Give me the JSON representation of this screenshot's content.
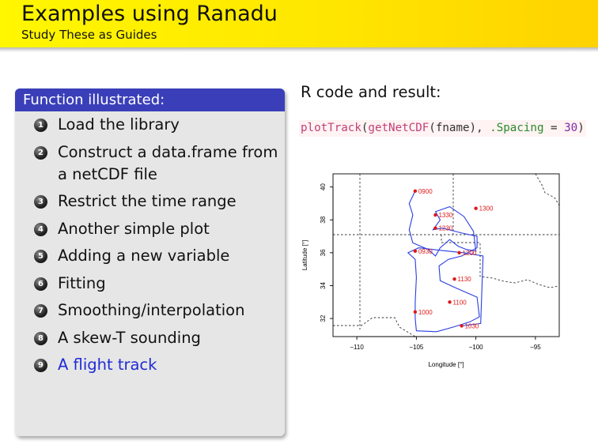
{
  "header": {
    "title": "Examples using Ranadu",
    "subtitle": "Study These as Guides",
    "colors": {
      "background": "#ffe600",
      "text": "#111111"
    }
  },
  "block": {
    "title": "Function illustrated:",
    "items": [
      {
        "number": "1",
        "label": "Load the library"
      },
      {
        "number": "2",
        "label": "Construct a data.frame from a netCDF file"
      },
      {
        "number": "3",
        "label": "Restrict the time range"
      },
      {
        "number": "4",
        "label": "Another simple plot"
      },
      {
        "number": "5",
        "label": "Adding a new variable"
      },
      {
        "number": "6",
        "label": "Fitting"
      },
      {
        "number": "7",
        "label": "Smoothing/interpolation"
      },
      {
        "number": "8",
        "label": "A skew-T sounding"
      },
      {
        "number": "9",
        "label": "A flight track"
      }
    ],
    "active_item": 8,
    "colors": {
      "title_bar": "#3a3fb9",
      "active": "#1f2bd6"
    }
  },
  "right": {
    "heading": "R code and result:",
    "code": {
      "fn1": "plotTrack",
      "p1": "(",
      "fn2": "getNetCDF",
      "p2": "(fname), ",
      "arg": ".Spacing",
      "p3": " = ",
      "num": "30",
      "p4": ")"
    }
  },
  "chart_data": {
    "type": "line",
    "title": "",
    "xlabel": "Longitude [°]",
    "ylabel": "Latitude [°]",
    "xlim": [
      -112.0,
      -93.0
    ],
    "ylim": [
      30.9,
      40.8
    ],
    "xticks": [
      -110,
      -105,
      -100,
      -95
    ],
    "xtick_labels": [
      "−110",
      "−105",
      "−100",
      "−95"
    ],
    "yticks": [
      32,
      34,
      36,
      38,
      40
    ],
    "ytick_labels": [
      "32",
      "34",
      "36",
      "38",
      "40"
    ],
    "grid": false,
    "legend": "none",
    "series": [
      {
        "color": "#2a3de0",
        "x": [
          -105.1,
          -105.6,
          -105.3,
          -105.6,
          -105.3,
          -104.0,
          -103.4,
          -103.0,
          -102.2,
          -101.5,
          -100.8,
          -100.0,
          -100.2,
          -101.0,
          -102.2,
          -103.4,
          -103.0,
          -103.6,
          -102.8,
          -101.2,
          -99.9,
          -99.9,
          -101.2,
          -102.3,
          -103.1,
          -103.0,
          -101.8,
          -99.9,
          -99.7,
          -100.5,
          -101.8,
          -103.3,
          -105.0,
          -105.1,
          -105.1,
          -105.0,
          -105.1,
          -105.7,
          -104.8,
          -103.0,
          -101.0,
          -99.4,
          -99.6,
          -101.2
        ],
        "y": [
          39.75,
          39.0,
          38.3,
          37.4,
          36.6,
          36.2,
          35.8,
          36.3,
          36.8,
          36.4,
          36.2,
          36.1,
          37.3,
          38.2,
          38.8,
          38.5,
          38.0,
          37.4,
          37.5,
          37.2,
          37.0,
          36.3,
          35.8,
          35.6,
          35.2,
          34.3,
          33.9,
          33.3,
          32.1,
          31.8,
          31.5,
          31.2,
          31.25,
          32.0,
          33.0,
          34.5,
          35.6,
          36.0,
          36.3,
          36.15,
          36.0,
          35.8,
          31.7,
          31.55
        ]
      }
    ],
    "annotations": [
      {
        "label": "0900",
        "x": -105.1,
        "y": 39.75
      },
      {
        "label": "1330",
        "x": -103.4,
        "y": 38.3
      },
      {
        "label": "1300",
        "x": -100.0,
        "y": 38.7
      },
      {
        "label": "1230",
        "x": -103.4,
        "y": 37.5
      },
      {
        "label": "0930",
        "x": -105.1,
        "y": 36.1
      },
      {
        "label": "1200",
        "x": -101.4,
        "y": 36.0
      },
      {
        "label": "1130",
        "x": -101.8,
        "y": 34.4
      },
      {
        "label": "1100",
        "x": -102.2,
        "y": 33.0
      },
      {
        "label": "1000",
        "x": -105.1,
        "y": 32.4
      },
      {
        "label": "1030",
        "x": -101.2,
        "y": 31.55
      }
    ],
    "marker_color": "#e01818"
  }
}
